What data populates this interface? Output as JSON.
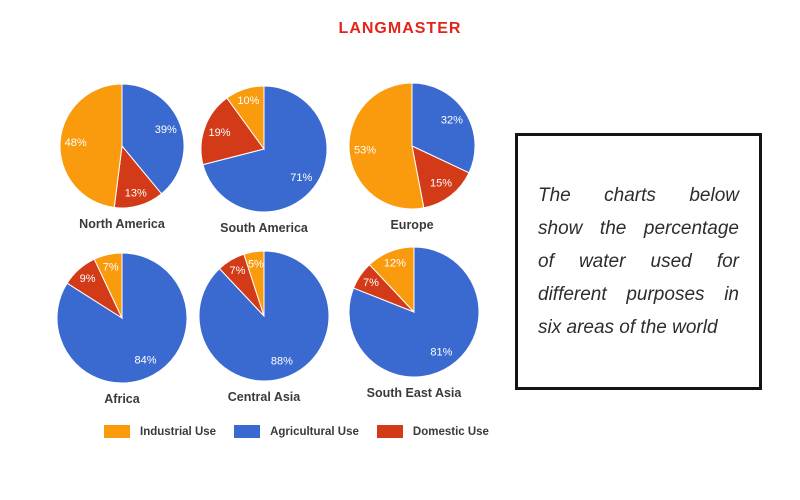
{
  "logo": {
    "text": "LANGMASTER",
    "color": "#E1251B"
  },
  "note": {
    "lines": [
      "The charts below",
      "show the percentage",
      "of water used for",
      "different purposes in",
      "six areas of the world"
    ]
  },
  "legend": {
    "items": [
      {
        "label": "Industrial Use",
        "color": "#F99B0C"
      },
      {
        "label": "Agricultural Use",
        "color": "#3A6AD0"
      },
      {
        "label": "Domestic Use",
        "color": "#D23A18"
      }
    ]
  },
  "chart_data": {
    "type": "pie",
    "unit": "%",
    "start_angle": "12 o'clock",
    "direction": "clockwise",
    "legend_position": "bottom",
    "colors": {
      "Industrial Use": "#F99B0C",
      "Agricultural Use": "#3A6AD0",
      "Domestic Use": "#D23A18"
    },
    "charts": [
      {
        "region": "North America",
        "slices": [
          {
            "label": "Agricultural Use",
            "value": 39
          },
          {
            "label": "Domestic Use",
            "value": 13
          },
          {
            "label": "Industrial Use",
            "value": 48
          }
        ]
      },
      {
        "region": "South America",
        "slices": [
          {
            "label": "Agricultural Use",
            "value": 71
          },
          {
            "label": "Domestic Use",
            "value": 19
          },
          {
            "label": "Industrial Use",
            "value": 10
          }
        ]
      },
      {
        "region": "Europe",
        "slices": [
          {
            "label": "Agricultural Use",
            "value": 32
          },
          {
            "label": "Domestic Use",
            "value": 15
          },
          {
            "label": "Industrial Use",
            "value": 53
          }
        ]
      },
      {
        "region": "Africa",
        "slices": [
          {
            "label": "Agricultural Use",
            "value": 84
          },
          {
            "label": "Domestic Use",
            "value": 9
          },
          {
            "label": "Industrial Use",
            "value": 7
          }
        ]
      },
      {
        "region": "Central Asia",
        "slices": [
          {
            "label": "Agricultural Use",
            "value": 88
          },
          {
            "label": "Domestic Use",
            "value": 7
          },
          {
            "label": "Industrial Use",
            "value": 5
          }
        ]
      },
      {
        "region": "South East Asia",
        "slices": [
          {
            "label": "Agricultural Use",
            "value": 81
          },
          {
            "label": "Domestic Use",
            "value": 7
          },
          {
            "label": "Industrial Use",
            "value": 12
          }
        ]
      }
    ]
  }
}
